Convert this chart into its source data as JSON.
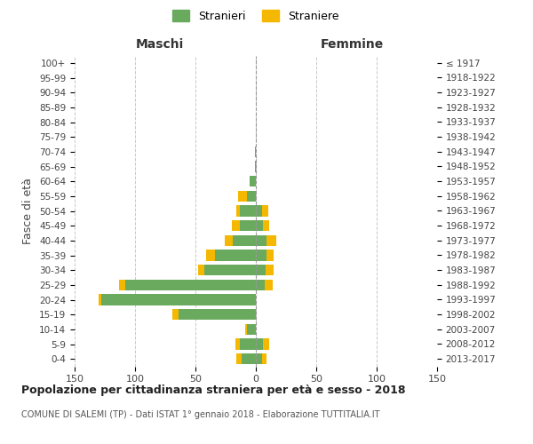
{
  "age_groups": [
    "0-4",
    "5-9",
    "10-14",
    "15-19",
    "20-24",
    "25-29",
    "30-34",
    "35-39",
    "40-44",
    "45-49",
    "50-54",
    "55-59",
    "60-64",
    "65-69",
    "70-74",
    "75-79",
    "80-84",
    "85-89",
    "90-94",
    "95-99",
    "100+"
  ],
  "birth_years": [
    "2013-2017",
    "2008-2012",
    "2003-2007",
    "1998-2002",
    "1993-1997",
    "1988-1992",
    "1983-1987",
    "1978-1982",
    "1973-1977",
    "1968-1972",
    "1963-1967",
    "1958-1962",
    "1953-1957",
    "1948-1952",
    "1943-1947",
    "1938-1942",
    "1933-1937",
    "1928-1932",
    "1923-1927",
    "1918-1922",
    "≤ 1917"
  ],
  "maschi_stranieri": [
    12,
    13,
    7,
    64,
    128,
    108,
    43,
    34,
    19,
    13,
    13,
    7,
    5,
    1,
    1,
    0,
    0,
    0,
    0,
    0,
    0
  ],
  "maschi_straniere": [
    4,
    4,
    2,
    5,
    2,
    5,
    5,
    7,
    7,
    7,
    3,
    8,
    0,
    0,
    0,
    0,
    0,
    0,
    0,
    0,
    0
  ],
  "femmine_stranieri": [
    5,
    6,
    0,
    0,
    0,
    7,
    8,
    9,
    9,
    6,
    5,
    0,
    0,
    0,
    0,
    0,
    0,
    0,
    0,
    0,
    0
  ],
  "femmine_straniere": [
    4,
    5,
    0,
    0,
    0,
    7,
    7,
    6,
    8,
    5,
    5,
    0,
    0,
    0,
    0,
    0,
    0,
    0,
    0,
    0,
    0
  ],
  "color_stranieri": "#6aaa5e",
  "color_straniere": "#f5b800",
  "xlim": 150,
  "title": "Popolazione per cittadinanza straniera per età e sesso - 2018",
  "subtitle": "COMUNE DI SALEMI (TP) - Dati ISTAT 1° gennaio 2018 - Elaborazione TUTTITALIA.IT",
  "ylabel_left": "Fasce di età",
  "header_left": "Maschi",
  "header_right": "Femmine",
  "bg_color": "#ffffff",
  "grid_color": "#c8c8c8"
}
